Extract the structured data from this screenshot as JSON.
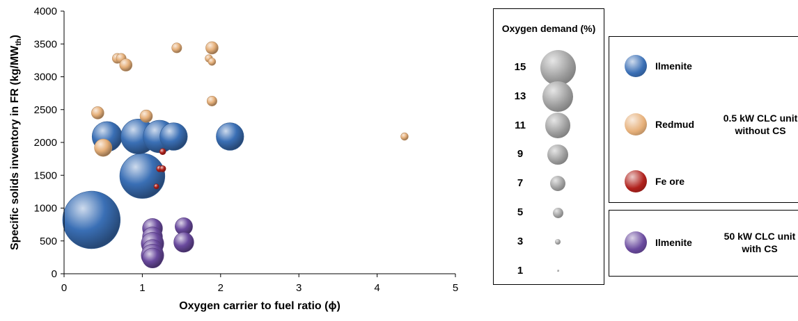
{
  "chart_data": {
    "type": "scatter",
    "subtype": "bubble",
    "title": "",
    "xlabel": "Oxygen carrier to fuel ratio (ϕ)",
    "ylabel_main": "Specific solids inventory in FR  (kg/MW",
    "ylabel_sub": "th",
    "ylabel_end": ")",
    "xlim": [
      0,
      5
    ],
    "ylim": [
      0,
      4000
    ],
    "xticks": [
      "0",
      "1",
      "2",
      "3",
      "4",
      "5"
    ],
    "yticks": [
      "0",
      "500",
      "1000",
      "1500",
      "2000",
      "2500",
      "3000",
      "3500",
      "4000"
    ],
    "grid": false,
    "size_variable": "Oxygen demand (%)",
    "series": [
      {
        "name": "Ilmenite",
        "group": "0.5 kW CLC unit without CS",
        "color": "#3a6fb5",
        "points": [
          {
            "x": 0.35,
            "y": 820,
            "size": 23
          },
          {
            "x": 1.0,
            "y": 1490,
            "size": 18
          },
          {
            "x": 0.55,
            "y": 2090,
            "size": 12
          },
          {
            "x": 0.95,
            "y": 2090,
            "size": 14
          },
          {
            "x": 1.22,
            "y": 2090,
            "size": 13
          },
          {
            "x": 1.4,
            "y": 2090,
            "size": 11
          },
          {
            "x": 2.12,
            "y": 2090,
            "size": 11
          }
        ]
      },
      {
        "name": "Redmud",
        "group": "0.5 kW CLC unit without CS",
        "color": "#e6b07a",
        "points": [
          {
            "x": 0.68,
            "y": 3280,
            "size": 4
          },
          {
            "x": 0.73,
            "y": 3280,
            "size": 4
          },
          {
            "x": 0.79,
            "y": 3180,
            "size": 5
          },
          {
            "x": 1.44,
            "y": 3440,
            "size": 4
          },
          {
            "x": 1.89,
            "y": 3440,
            "size": 5
          },
          {
            "x": 1.85,
            "y": 3280,
            "size": 3
          },
          {
            "x": 1.89,
            "y": 3230,
            "size": 3
          },
          {
            "x": 1.89,
            "y": 2630,
            "size": 4
          },
          {
            "x": 0.43,
            "y": 2450,
            "size": 5
          },
          {
            "x": 1.05,
            "y": 2400,
            "size": 5
          },
          {
            "x": 0.5,
            "y": 1920,
            "size": 7
          },
          {
            "x": 4.35,
            "y": 2090,
            "size": 3
          }
        ]
      },
      {
        "name": "Fe ore",
        "group": "0.5 kW CLC unit without CS",
        "color": "#b0211c",
        "points": [
          {
            "x": 1.26,
            "y": 1860,
            "size": 2.5
          },
          {
            "x": 1.22,
            "y": 1600,
            "size": 2.5
          },
          {
            "x": 1.26,
            "y": 1600,
            "size": 2.5
          },
          {
            "x": 1.18,
            "y": 1330,
            "size": 2
          }
        ]
      },
      {
        "name": "Ilmenite",
        "group": "50 kW CLC unit with CS",
        "color": "#6a4a9e",
        "points": [
          {
            "x": 1.13,
            "y": 690,
            "size": 8
          },
          {
            "x": 1.13,
            "y": 560,
            "size": 8
          },
          {
            "x": 1.13,
            "y": 460,
            "size": 9
          },
          {
            "x": 1.13,
            "y": 370,
            "size": 8
          },
          {
            "x": 1.13,
            "y": 280,
            "size": 9
          },
          {
            "x": 1.13,
            "y": 240,
            "size": 8
          },
          {
            "x": 1.53,
            "y": 720,
            "size": 7
          },
          {
            "x": 1.53,
            "y": 480,
            "size": 8
          }
        ]
      }
    ]
  },
  "size_legend": {
    "title": "Oxygen demand (%)",
    "values": [
      "15",
      "13",
      "11",
      "9",
      "7",
      "5",
      "3",
      "1"
    ],
    "color": "#9a9a9a"
  },
  "legend_top": {
    "group_label": "0.5 kW CLC unit without CS",
    "entries": [
      {
        "label": "Ilmenite",
        "color": "#3a6fb5"
      },
      {
        "label": "Redmud",
        "color": "#e6b07a"
      },
      {
        "label": "Fe ore",
        "color": "#b0211c"
      }
    ]
  },
  "legend_bottom": {
    "group_label": "50 kW CLC unit with CS",
    "entries": [
      {
        "label": "Ilmenite",
        "color": "#6a4a9e"
      }
    ]
  }
}
